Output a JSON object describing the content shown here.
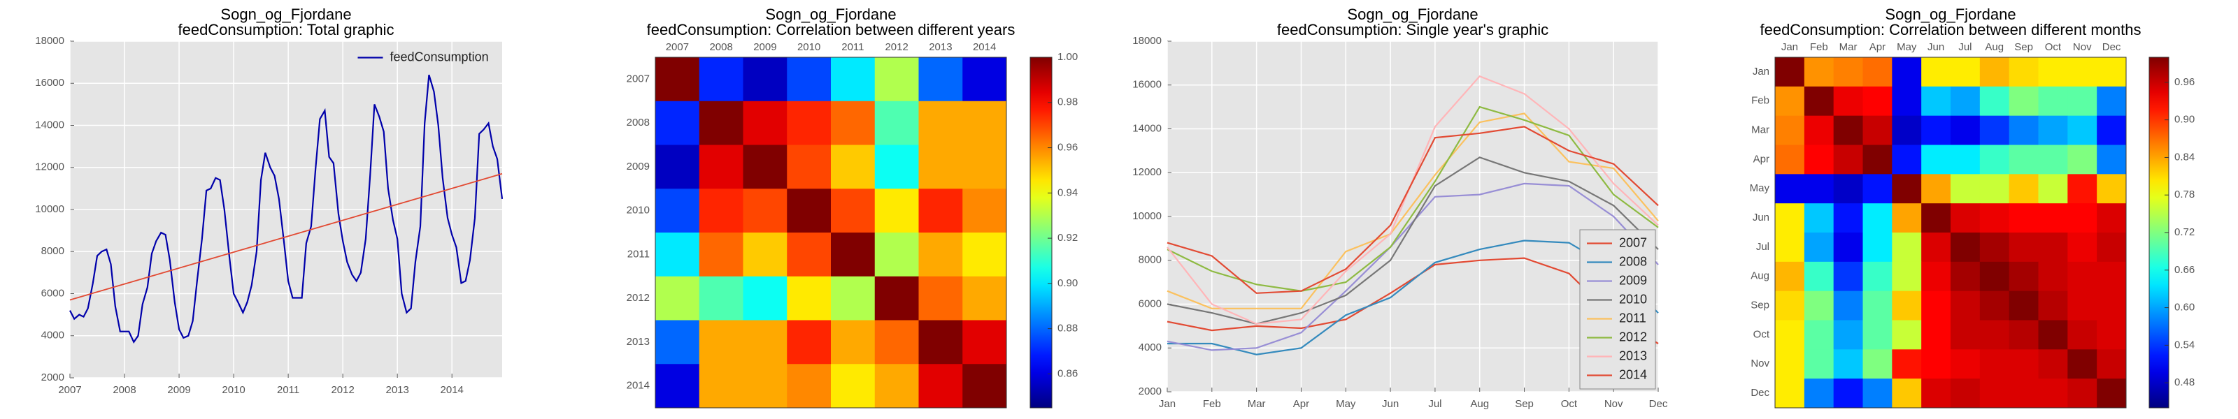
{
  "chart_data": [
    {
      "type": "line",
      "title": "Sogn_og_Fjordane",
      "subtitle": "feedConsumption: Total graphic",
      "x": [
        2007,
        2007.08,
        2007.17,
        2007.25,
        2007.33,
        2007.42,
        2007.5,
        2007.58,
        2007.67,
        2007.75,
        2007.83,
        2007.92,
        2008,
        2008.08,
        2008.17,
        2008.25,
        2008.33,
        2008.42,
        2008.5,
        2008.58,
        2008.67,
        2008.75,
        2008.83,
        2008.92,
        2009,
        2009.08,
        2009.17,
        2009.25,
        2009.33,
        2009.42,
        2009.5,
        2009.58,
        2009.67,
        2009.75,
        2009.83,
        2009.92,
        2010,
        2010.08,
        2010.17,
        2010.25,
        2010.33,
        2010.42,
        2010.5,
        2010.58,
        2010.67,
        2010.75,
        2010.83,
        2010.92,
        2011,
        2011.08,
        2011.17,
        2011.25,
        2011.33,
        2011.42,
        2011.5,
        2011.58,
        2011.67,
        2011.75,
        2011.83,
        2011.92,
        2012,
        2012.08,
        2012.17,
        2012.25,
        2012.33,
        2012.42,
        2012.5,
        2012.58,
        2012.67,
        2012.75,
        2012.83,
        2012.92,
        2013,
        2013.08,
        2013.17,
        2013.25,
        2013.33,
        2013.42,
        2013.5,
        2013.58,
        2013.67,
        2013.75,
        2013.83,
        2013.92,
        2014,
        2014.08,
        2014.17,
        2014.25,
        2014.33,
        2014.42,
        2014.5,
        2014.58,
        2014.67,
        2014.75,
        2014.83,
        2014.92
      ],
      "series": [
        {
          "name": "feedConsumption",
          "color": "#0000aa",
          "values": [
            5200,
            4800,
            5000,
            4900,
            5300,
            6500,
            7800,
            8000,
            8100,
            7400,
            5400,
            4200,
            4200,
            4200,
            3700,
            4000,
            5500,
            6300,
            7900,
            8500,
            8900,
            8800,
            7600,
            5600,
            4300,
            3900,
            4000,
            4700,
            6600,
            8600,
            10900,
            11000,
            11500,
            11400,
            10000,
            7800,
            6000,
            5600,
            5100,
            5600,
            6400,
            8000,
            11400,
            12700,
            12000,
            11600,
            10500,
            8500,
            6600,
            5800,
            5800,
            5800,
            8400,
            9200,
            11900,
            14300,
            14700,
            12500,
            12200,
            9800,
            8500,
            7500,
            6900,
            6600,
            7000,
            8600,
            11600,
            15000,
            14400,
            13700,
            11000,
            9500,
            8600,
            6000,
            5100,
            5300,
            7500,
            9200,
            14100,
            16400,
            15600,
            14000,
            11500,
            9600,
            8800,
            8200,
            6500,
            6600,
            7600,
            9600,
            13600,
            13800,
            14100,
            13000,
            12400,
            10500
          ]
        }
      ],
      "trend": {
        "color": "#e24a33",
        "x": [
          2007,
          2014.92
        ],
        "values": [
          5700,
          11700
        ]
      },
      "xlim": [
        2007,
        2014.92
      ],
      "xticks": [
        2007,
        2008,
        2009,
        2010,
        2011,
        2012,
        2013,
        2014
      ],
      "ylim": [
        2000,
        18000
      ],
      "yticks": [
        2000,
        4000,
        6000,
        8000,
        10000,
        12000,
        14000,
        16000,
        18000
      ],
      "grid": true,
      "legend": "upper right"
    },
    {
      "type": "heatmap",
      "title": "Sogn_og_Fjordane",
      "subtitle": "feedConsumption: Correlation between different years",
      "categories": [
        "2007",
        "2008",
        "2009",
        "2010",
        "2011",
        "2012",
        "2013",
        "2014"
      ],
      "values": [
        [
          1.0,
          0.87,
          0.855,
          0.875,
          0.9,
          0.93,
          0.88,
          0.86
        ],
        [
          0.87,
          1.0,
          0.985,
          0.975,
          0.965,
          0.915,
          0.955,
          0.955
        ],
        [
          0.855,
          0.985,
          1.0,
          0.97,
          0.95,
          0.905,
          0.955,
          0.955
        ],
        [
          0.875,
          0.975,
          0.97,
          1.0,
          0.97,
          0.945,
          0.975,
          0.96
        ],
        [
          0.9,
          0.965,
          0.95,
          0.97,
          1.0,
          0.93,
          0.955,
          0.945
        ],
        [
          0.93,
          0.915,
          0.905,
          0.945,
          0.93,
          1.0,
          0.965,
          0.955
        ],
        [
          0.88,
          0.955,
          0.955,
          0.975,
          0.955,
          0.965,
          1.0,
          0.985
        ],
        [
          0.86,
          0.955,
          0.955,
          0.96,
          0.945,
          0.955,
          0.985,
          1.0
        ]
      ],
      "clim": [
        0.845,
        1.0
      ],
      "cticks": [
        0.86,
        0.88,
        {
          "value": 0.9,
          "label": "0.90"
        },
        0.92,
        0.94,
        0.96,
        0.98,
        {
          "value": 1,
          "label": "1.00"
        }
      ]
    },
    {
      "type": "line",
      "title": "Sogn_og_Fjordane",
      "subtitle": "feedConsumption: Single year's graphic",
      "categories": [
        "Jan",
        "Feb",
        "Mar",
        "Apr",
        "May",
        "Jun",
        "Jul",
        "Aug",
        "Sep",
        "Oct",
        "Nov",
        "Dec"
      ],
      "series": [
        {
          "name": "2007",
          "color": "#e24a33",
          "values": [
            5200,
            4800,
            5000,
            4900,
            5300,
            6500,
            7800,
            8000,
            8100,
            7400,
            5400,
            4200
          ]
        },
        {
          "name": "2008",
          "color": "#348abd",
          "values": [
            4200,
            4200,
            3700,
            4000,
            5500,
            6300,
            7900,
            8500,
            8900,
            8800,
            7600,
            5600
          ]
        },
        {
          "name": "2009",
          "color": "#988ed5",
          "values": [
            4300,
            3900,
            4000,
            4700,
            6600,
            8600,
            10900,
            11000,
            11500,
            11400,
            10000,
            7800
          ]
        },
        {
          "name": "2010",
          "color": "#777777",
          "values": [
            6000,
            5600,
            5100,
            5600,
            6400,
            8000,
            11400,
            12700,
            12000,
            11600,
            10500,
            8500
          ]
        },
        {
          "name": "2011",
          "color": "#fbc15e",
          "values": [
            6600,
            5800,
            5800,
            5800,
            8400,
            9200,
            11900,
            14300,
            14700,
            12500,
            12200,
            9800
          ]
        },
        {
          "name": "2012",
          "color": "#8eba42",
          "values": [
            8500,
            7500,
            6900,
            6600,
            7000,
            8600,
            11600,
            15000,
            14400,
            13700,
            11000,
            9500
          ]
        },
        {
          "name": "2013",
          "color": "#ffb5b8",
          "values": [
            8600,
            6000,
            5100,
            5300,
            7500,
            9200,
            14100,
            16400,
            15600,
            14000,
            11500,
            9600
          ]
        },
        {
          "name": "2014",
          "color": "#e24a33",
          "values": [
            8800,
            8200,
            6500,
            6600,
            7600,
            9600,
            13600,
            13800,
            14100,
            13000,
            12400,
            10500
          ]
        }
      ],
      "ylim": [
        2000,
        18000
      ],
      "yticks": [
        2000,
        4000,
        6000,
        8000,
        10000,
        12000,
        14000,
        16000,
        18000
      ],
      "grid": true,
      "legend": "lower right"
    },
    {
      "type": "heatmap",
      "title": "Sogn_og_Fjordane",
      "subtitle": "feedConsumption: Correlation between different months",
      "categories": [
        "Jan",
        "Feb",
        "Mar",
        "Apr",
        "May",
        "Jun",
        "Jul",
        "Aug",
        "Sep",
        "Oct",
        "Nov",
        "Dec"
      ],
      "values": [
        [
          1.0,
          0.85,
          0.86,
          0.87,
          0.5,
          0.8,
          0.8,
          0.83,
          0.81,
          0.8,
          0.8,
          0.8
        ],
        [
          0.85,
          1.0,
          0.94,
          0.93,
          0.5,
          0.62,
          0.6,
          0.68,
          0.72,
          0.7,
          0.7,
          0.58
        ],
        [
          0.86,
          0.94,
          1.0,
          0.96,
          0.48,
          0.52,
          0.5,
          0.54,
          0.58,
          0.6,
          0.62,
          0.52
        ],
        [
          0.87,
          0.93,
          0.96,
          1.0,
          0.52,
          0.64,
          0.64,
          0.68,
          0.7,
          0.7,
          0.72,
          0.58
        ],
        [
          0.5,
          0.5,
          0.48,
          0.52,
          1.0,
          0.84,
          0.76,
          0.76,
          0.82,
          0.76,
          0.92,
          0.82
        ],
        [
          0.8,
          0.62,
          0.52,
          0.64,
          0.84,
          1.0,
          0.95,
          0.94,
          0.93,
          0.93,
          0.93,
          0.95
        ],
        [
          0.8,
          0.6,
          0.5,
          0.64,
          0.76,
          0.95,
          1.0,
          0.98,
          0.96,
          0.96,
          0.94,
          0.96
        ],
        [
          0.83,
          0.68,
          0.54,
          0.68,
          0.76,
          0.94,
          0.98,
          1.0,
          0.98,
          0.96,
          0.95,
          0.95
        ],
        [
          0.81,
          0.72,
          0.58,
          0.7,
          0.82,
          0.93,
          0.96,
          0.98,
          1.0,
          0.97,
          0.95,
          0.95
        ],
        [
          0.8,
          0.7,
          0.6,
          0.7,
          0.76,
          0.93,
          0.96,
          0.96,
          0.97,
          1.0,
          0.96,
          0.95
        ],
        [
          0.8,
          0.7,
          0.62,
          0.72,
          0.92,
          0.93,
          0.94,
          0.95,
          0.95,
          0.96,
          1.0,
          0.96
        ],
        [
          0.8,
          0.58,
          0.52,
          0.58,
          0.82,
          0.95,
          0.96,
          0.95,
          0.95,
          0.95,
          0.96,
          1.0
        ]
      ],
      "clim": [
        0.44,
        1.0
      ],
      "cticks": [
        0.48,
        0.54,
        {
          "value": 0.6,
          "label": "0.60"
        },
        0.66,
        0.72,
        0.78,
        0.84,
        {
          "value": 0.9,
          "label": "0.90"
        },
        0.96
      ]
    }
  ]
}
